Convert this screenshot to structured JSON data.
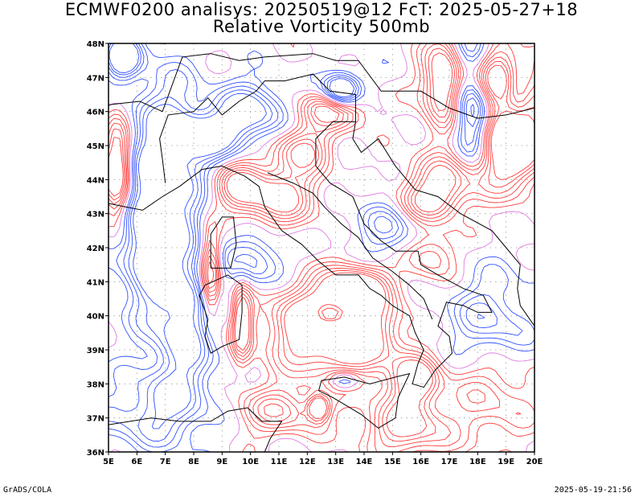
{
  "title": {
    "line1": "ECMWF0200 analisys: 20250519@12 FcT: 2025-05-27+18",
    "line2": "Relative Vorticity 500mb"
  },
  "footer": {
    "left": "GrADS/COLA",
    "right": "2025-05-19-21:56"
  },
  "map": {
    "lon_range": [
      5,
      20
    ],
    "lat_range": [
      36,
      48
    ],
    "x_ticks": [
      "5E",
      "6E",
      "7E",
      "8E",
      "9E",
      "10E",
      "11E",
      "12E",
      "13E",
      "14E",
      "15E",
      "16E",
      "17E",
      "18E",
      "19E",
      "20E"
    ],
    "y_ticks": [
      "36N",
      "37N",
      "38N",
      "39N",
      "40N",
      "41N",
      "42N",
      "43N",
      "44N",
      "45N",
      "46N",
      "47N",
      "48N"
    ],
    "grid": "dotted",
    "colors": {
      "positive": "#ff3b3b",
      "negative": "#3050ff",
      "coast": "#000000",
      "grid": "#9a9a9a"
    },
    "contour_levels": {
      "positive": [
        1,
        2,
        3,
        4,
        5,
        6
      ],
      "negative": [
        1,
        2,
        3,
        4,
        5
      ]
    }
  }
}
